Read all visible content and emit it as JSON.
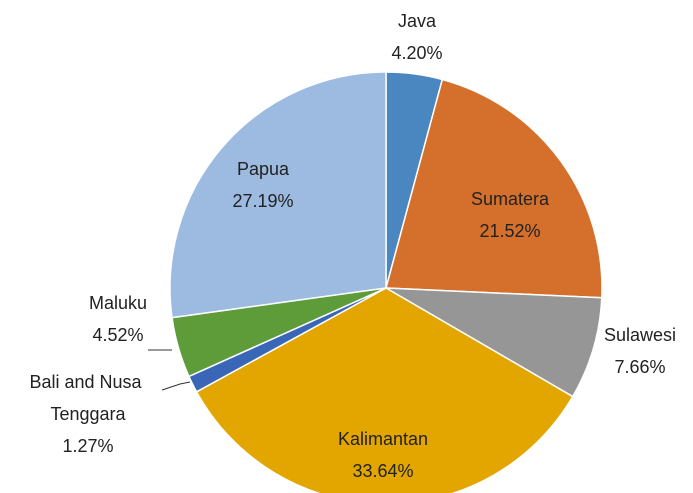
{
  "chart_data": {
    "type": "pie",
    "categories": [
      "Java",
      "Sumatera",
      "Sulawesi",
      "Kalimantan",
      "Bali and Nusa Tenggara",
      "Maluku",
      "Papua"
    ],
    "values": [
      4.2,
      21.52,
      7.66,
      33.64,
      1.27,
      4.52,
      27.19
    ],
    "value_labels": [
      "4.20%",
      "21.52%",
      "7.66%",
      "33.64%",
      "1.27%",
      "4.52%",
      "27.19%"
    ],
    "colors": [
      "#4a86c0",
      "#d4702b",
      "#969696",
      "#e3a600",
      "#3a66b8",
      "#5e9c3a",
      "#9dbae0"
    ]
  }
}
